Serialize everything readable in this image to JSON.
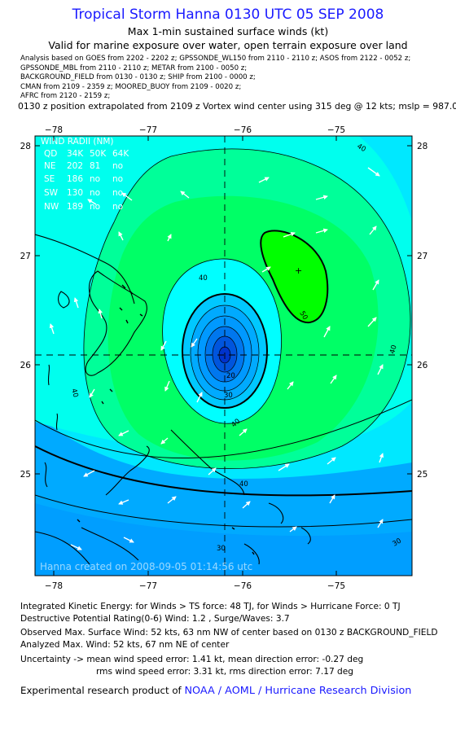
{
  "header": {
    "title": "Tropical Storm Hanna 0130 UTC 05 SEP 2008",
    "subtitle": "Max 1-min sustained surface winds (kt)",
    "validity": "Valid for marine exposure over water, open terrain exposure over land"
  },
  "analysis_sources": [
    "Analysis based on  GOES from 2202 - 2202 z;  GPSSONDE_WL150 from 2110 - 2110 z;  ASOS from 2122 - 0052 z;",
    "GPSSONDE_MBL from 2110 - 2110 z;  METAR from 2100 - 0050 z;",
    "BACKGROUND_FIELD from 0130 - 0130 z;  SHIP from 2100 - 0000 z;",
    "CMAN from 2109 - 2359 z;  MOORED_BUOY from 2109 - 0020 z;",
    "AFRC from 2120 - 2159 z;"
  ],
  "position_note": "0130 z position extrapolated from 2109 z Vortex wind center using 315 deg @ 12 kts; mslp = 987.0 mb",
  "map": {
    "x_ticks": [
      "−78",
      "−77",
      "−76",
      "−75"
    ],
    "y_ticks": [
      "28",
      "27",
      "26",
      "25"
    ],
    "center": {
      "lon": -76.05,
      "lat": 26.08
    },
    "contour_labels": [
      "40",
      "40",
      "40",
      "40",
      "40",
      "40",
      "30",
      "30",
      "30",
      "20",
      "50"
    ],
    "wind_radii": {
      "title": "WIND RADII (NM)",
      "header": [
        "QD",
        "34K",
        "50K",
        "64K"
      ],
      "rows": [
        [
          "NE",
          "202",
          "81",
          "no"
        ],
        [
          "SE",
          "186",
          "no",
          "no"
        ],
        [
          "SW",
          "130",
          "no",
          "no"
        ],
        [
          "NW",
          "189",
          "no",
          "no"
        ]
      ]
    },
    "watermark": "Hanna created on 2008-09-05 01:14:56 utc",
    "colors": {
      "ocean": "#00e8ff",
      "cyan_band": "#00ffee",
      "green_light": "#00ff99",
      "green_mid": "#00ff66",
      "green_max": "#00ff00",
      "blue_outer": "#00aaff",
      "core_blue": "#0033cc"
    }
  },
  "footer": {
    "ike": "Integrated Kinetic Energy:  for Winds > TS force: 48 TJ,  for Winds > Hurricane Force: 0 TJ",
    "dpr": "Destructive Potential Rating(0-6)   Wind: 1.2 , Surge/Waves: 3.7",
    "observed": "Observed Max. Surface Wind: 52 kts, 63 nm NW of center based on 0130 z BACKGROUND_FIELD",
    "analyzed": "Analyzed Max. Wind: 52 kts, 67 nm NE of center",
    "unc1": "Uncertainty -> mean wind speed error: 1.41 kt,   mean direction error:  -0.27 deg",
    "unc2": "rms wind speed error: 3.31 kt,   rms direction error: 7.17 deg",
    "credit_prefix": "Experimental research product of",
    "credit_link": "NOAA / AOML / Hurricane Research Division"
  }
}
